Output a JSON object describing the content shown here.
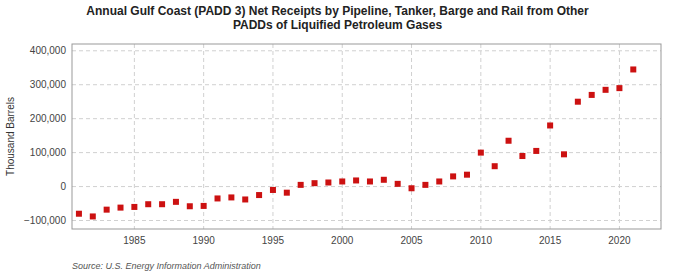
{
  "chart_data": {
    "type": "scatter",
    "title": "Annual Gulf Coast (PADD 3) Net Receipts by Pipeline, Tanker, Barge and Rail from Other\nPADDs of Liquified Petroleum Gases",
    "ylabel": "Thousand Barrels",
    "source": "Source: U.S. Energy Information Administration",
    "color": "#cc1111",
    "marker": "square",
    "grid": true,
    "x": [
      1981,
      1982,
      1983,
      1984,
      1985,
      1986,
      1987,
      1988,
      1989,
      1990,
      1991,
      1992,
      1993,
      1994,
      1995,
      1996,
      1997,
      1998,
      1999,
      2000,
      2001,
      2002,
      2003,
      2004,
      2005,
      2006,
      2007,
      2008,
      2009,
      2010,
      2011,
      2012,
      2013,
      2014,
      2015,
      2016,
      2017,
      2018,
      2019,
      2020,
      2021
    ],
    "values": [
      -80000,
      -88000,
      -68000,
      -62000,
      -60000,
      -52000,
      -52000,
      -45000,
      -58000,
      -57000,
      -35000,
      -32000,
      -38000,
      -25000,
      -10000,
      -18000,
      5000,
      10000,
      12000,
      15000,
      18000,
      15000,
      20000,
      8000,
      -5000,
      5000,
      15000,
      30000,
      35000,
      100000,
      60000,
      135000,
      90000,
      105000,
      180000,
      95000,
      250000,
      270000,
      285000,
      290000,
      345000
    ],
    "xlim": [
      1980.5,
      2023
    ],
    "xticks": [
      1985,
      1990,
      1995,
      2000,
      2005,
      2010,
      2015,
      2020
    ],
    "ylim": [
      -125000,
      420000
    ],
    "yticks": [
      {
        "value": -100000,
        "label": "−100,000"
      },
      0,
      {
        "value": 100000,
        "label": "100,000"
      },
      {
        "value": 200000,
        "label": "200,000"
      },
      {
        "value": 300000,
        "label": "300,000"
      },
      {
        "value": 400000,
        "label": "400,000"
      }
    ]
  }
}
